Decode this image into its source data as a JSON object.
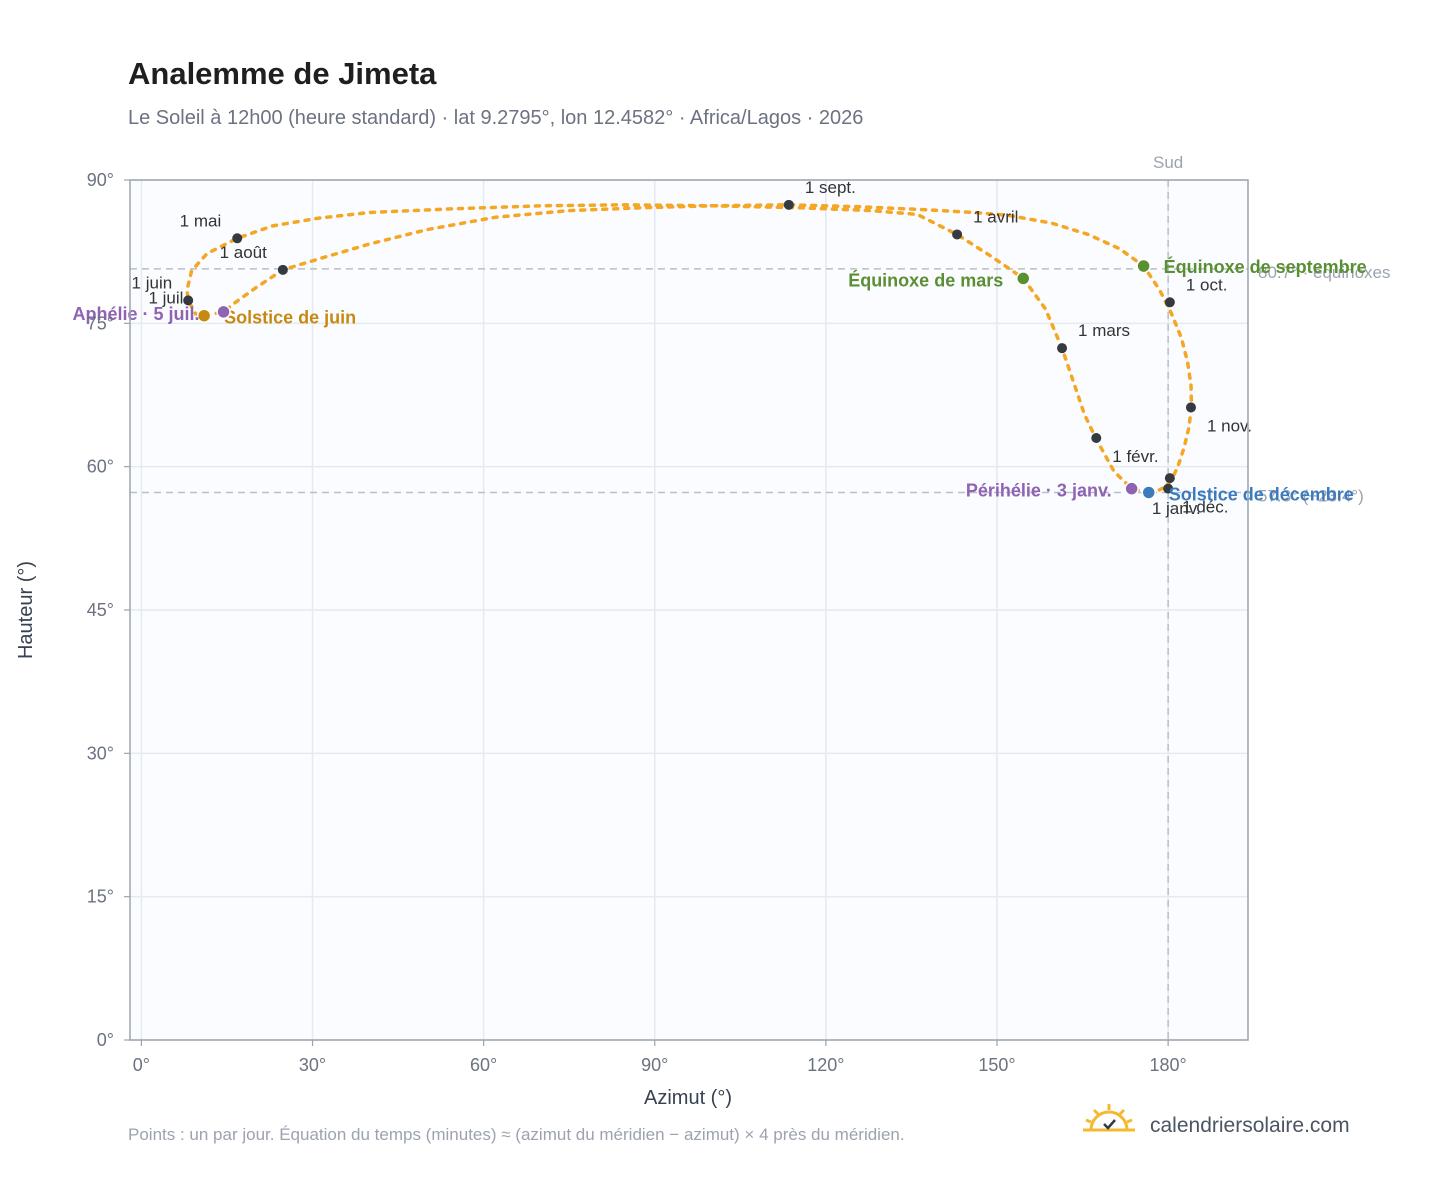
{
  "chart_data": {
    "type": "scatter",
    "title": "Analemme de Jimeta",
    "subtitle": "Le Soleil à 12h00 (heure standard) · lat 9.2795°, lon 12.4582° · Africa/Lagos · 2026",
    "xlabel": "Azimut (°)",
    "ylabel": "Hauteur (°)",
    "xlim": [
      -2,
      194
    ],
    "ylim": [
      0,
      90
    ],
    "x_ticks": [
      {
        "value": 0,
        "label": "0°"
      },
      {
        "value": 30,
        "label": "30°"
      },
      {
        "value": 60,
        "label": "60°"
      },
      {
        "value": 90,
        "label": "90°"
      },
      {
        "value": 120,
        "label": "120°"
      },
      {
        "value": 150,
        "label": "150°"
      },
      {
        "value": 180,
        "label": "180°"
      }
    ],
    "y_ticks": [
      {
        "value": 0,
        "label": "0°"
      },
      {
        "value": 15,
        "label": "15°"
      },
      {
        "value": 30,
        "label": "30°"
      },
      {
        "value": 45,
        "label": "45°"
      },
      {
        "value": 60,
        "label": "60°"
      },
      {
        "value": 75,
        "label": "75°"
      },
      {
        "value": 90,
        "label": "90°"
      }
    ],
    "grid": true,
    "colors": {
      "path": "#f5a623",
      "month_marker": "#343a40",
      "equinox": "#5a8f32",
      "solstice_june": "#c68a12",
      "solstice_december": "#3d7bbf",
      "apsis": "#8f63b3",
      "reference_line": "#b8bfc8",
      "plot_background": "#fafcff",
      "grid": "#e5eaf0"
    },
    "path": [
      [
        176.6,
        57.3
      ],
      [
        177.3,
        57.35
      ],
      [
        178.2,
        57.5
      ],
      [
        179.2,
        57.8
      ],
      [
        180.5,
        58.5
      ],
      [
        181.7,
        60.0
      ],
      [
        182.8,
        62.0
      ],
      [
        183.6,
        64.0
      ],
      [
        184.1,
        66.2
      ],
      [
        184.0,
        68.5
      ],
      [
        183.4,
        71.0
      ],
      [
        182.3,
        73.5
      ],
      [
        180.6,
        76.0
      ],
      [
        178.5,
        78.5
      ],
      [
        175.7,
        81.0
      ],
      [
        171.5,
        82.8
      ],
      [
        166.0,
        84.3
      ],
      [
        159.5,
        85.5
      ],
      [
        152.0,
        86.3
      ],
      [
        146.0,
        86.6
      ],
      [
        137.0,
        86.9
      ],
      [
        126.0,
        87.2
      ],
      [
        113.5,
        87.4
      ],
      [
        100.0,
        87.3
      ],
      [
        88.0,
        87.1
      ],
      [
        75.0,
        86.8
      ],
      [
        62.0,
        86.1
      ],
      [
        50.0,
        84.8
      ],
      [
        40.0,
        83.3
      ],
      [
        32.0,
        81.9
      ],
      [
        24.8,
        80.6
      ],
      [
        20.0,
        78.7
      ],
      [
        16.5,
        77.2
      ],
      [
        14.4,
        76.2
      ],
      [
        11.0,
        75.8
      ],
      [
        9.5,
        76.0
      ],
      [
        8.2,
        77.4
      ],
      [
        8.0,
        78.5
      ],
      [
        8.8,
        80.5
      ],
      [
        11.5,
        82.3
      ],
      [
        16.8,
        83.9
      ],
      [
        23.0,
        85.2
      ],
      [
        31.0,
        86.0
      ],
      [
        40.0,
        86.6
      ],
      [
        55.0,
        87.0
      ],
      [
        70.0,
        87.3
      ],
      [
        85.0,
        87.4
      ],
      [
        100.0,
        87.3
      ],
      [
        115.0,
        87.1
      ],
      [
        128.0,
        86.8
      ],
      [
        136.0,
        86.4
      ],
      [
        143.0,
        84.3
      ],
      [
        149.0,
        82.0
      ],
      [
        154.6,
        79.7
      ],
      [
        158.5,
        76.5
      ],
      [
        161.4,
        72.4
      ],
      [
        163.5,
        68.7
      ],
      [
        165.3,
        65.5
      ],
      [
        167.3,
        63.0
      ],
      [
        170.5,
        59.5
      ],
      [
        173.6,
        57.7
      ],
      [
        176.6,
        57.3
      ]
    ],
    "month_markers": [
      {
        "label": "1 janv.",
        "x": 180.3,
        "y": 58.8
      },
      {
        "label": "1 févr.",
        "x": 167.4,
        "y": 63.0
      },
      {
        "label": "1 mars",
        "x": 161.4,
        "y": 72.4
      },
      {
        "label": "1 avril",
        "x": 143.0,
        "y": 84.3
      },
      {
        "label": "1 mai",
        "x": 16.8,
        "y": 83.9
      },
      {
        "label": "1 juin",
        "x": 8.2,
        "y": 77.4
      },
      {
        "label": "1 juil.",
        "x": 11.0,
        "y": 75.8
      },
      {
        "label": "1 août",
        "x": 24.8,
        "y": 80.6
      },
      {
        "label": "1 sept.",
        "x": 113.5,
        "y": 87.4
      },
      {
        "label": "1 oct.",
        "x": 180.3,
        "y": 77.2
      },
      {
        "label": "1 nov.",
        "x": 184.0,
        "y": 66.2
      },
      {
        "label": "1 déc.",
        "x": 180.0,
        "y": 57.7
      }
    ],
    "events": [
      {
        "label": "Équinoxe de mars",
        "x": 154.6,
        "y": 79.7,
        "kind": "equinox"
      },
      {
        "label": "Équinoxe de septembre",
        "x": 175.7,
        "y": 81.0,
        "kind": "equinox"
      },
      {
        "label": "Solstice de juin",
        "x": 11.0,
        "y": 75.8,
        "kind": "solstice_june"
      },
      {
        "label": "Solstice de décembre",
        "x": 176.6,
        "y": 57.3,
        "kind": "solstice_december"
      },
      {
        "label": "Aphélie · 5 juil.",
        "x": 14.4,
        "y": 76.2,
        "kind": "apsis"
      },
      {
        "label": "Périhélie · 3 janv.",
        "x": 173.6,
        "y": 57.7,
        "kind": "apsis"
      }
    ],
    "reference_lines": [
      {
        "axis": "x",
        "value": 180,
        "label": "Sud"
      },
      {
        "axis": "y",
        "value": 80.7,
        "label": "80.7° · équinoxes"
      },
      {
        "axis": "y",
        "value": 57.3,
        "label": "57.3° (−23.4°)"
      }
    ]
  },
  "footer": {
    "note": "Points : un par jour. Équation du temps (minutes) ≈ (azimut du méridien − azimut) × 4 près du méridien.",
    "brand": "calendriersolaire.com",
    "brand_icon": "sun-check-icon"
  }
}
